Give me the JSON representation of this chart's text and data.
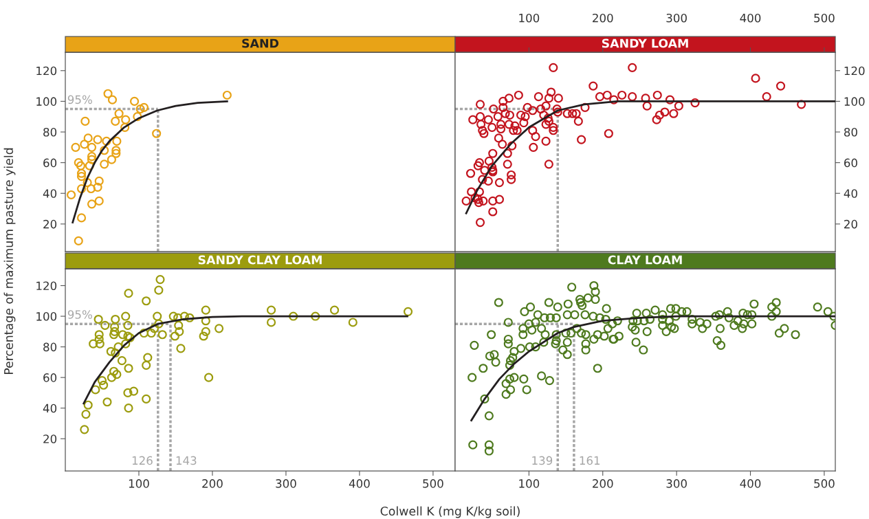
{
  "chart_data": [
    {
      "type": "scatter",
      "title": "SAND",
      "ylabel": "Percentage of maximum pasture yield",
      "marker": "circle",
      "xlim": [
        0,
        530
      ],
      "ylim": [
        2,
        132
      ],
      "yticks": [
        20,
        40,
        60,
        80,
        100,
        120
      ],
      "tick_labels": "y",
      "series": [
        {
          "color": "#e8a317",
          "x": [
            58,
            64,
            94,
            102,
            107,
            98,
            73,
            68,
            82,
            81,
            27,
            124,
            220,
            31,
            44,
            26,
            36,
            14,
            56,
            70,
            53,
            69,
            69,
            36,
            36,
            63,
            53,
            18,
            21,
            33,
            22,
            22,
            30,
            46,
            22,
            35,
            44,
            8,
            36,
            46,
            22,
            18
          ],
          "values": [
            105,
            101,
            100,
            95,
            96,
            90,
            92,
            87,
            88,
            83,
            87,
            79,
            104,
            76,
            75,
            72,
            70,
            70,
            74,
            74,
            68,
            68,
            66,
            64,
            62,
            62,
            59,
            60,
            58,
            58,
            53,
            51,
            47,
            48,
            43,
            43,
            44,
            39,
            33,
            35,
            24,
            9
          ]
        },
        {
          "type": "line",
          "color": "#231f20",
          "marker": "none",
          "x": [
            10,
            20,
            30,
            40,
            50,
            60,
            80,
            100,
            125,
            150,
            180,
            220
          ],
          "values": [
            21,
            37,
            50,
            60,
            68,
            74,
            83,
            89,
            94,
            97,
            99,
            100
          ]
        }
      ],
      "ref_lines": [
        {
          "axis": "y",
          "value": 95,
          "label": "95%",
          "color": "#a6a6a6",
          "line_style": "dotted"
        },
        {
          "axis": "x",
          "value": 126,
          "label": null,
          "color": "#a6a6a6",
          "line_style": "dotted"
        }
      ]
    },
    {
      "type": "scatter",
      "title": "SANDY LOAM",
      "marker": "circle",
      "xlim": [
        0,
        515
      ],
      "xticks": [
        100,
        200,
        300,
        400,
        500
      ],
      "ylim": [
        2,
        132
      ],
      "yticks": [
        20,
        40,
        60,
        80,
        100,
        120
      ],
      "series": [
        {
          "color": "#c3141e",
          "x": [
            133,
            187,
            196,
            206,
            215,
            130,
            127,
            140,
            113,
            86,
            73,
            65,
            34,
            65,
            52,
            98,
            116,
            123,
            138,
            139,
            152,
            159,
            164,
            176,
            167,
            171,
            208,
            24,
            34,
            45,
            58,
            68,
            74,
            89,
            95,
            105,
            120,
            126,
            127,
            123,
            133,
            133,
            35,
            37,
            39,
            50,
            62,
            62,
            73,
            81,
            79,
            84,
            93,
            105,
            109,
            106,
            123,
            127,
            59,
            64,
            77,
            51,
            71,
            71,
            46,
            31,
            33,
            21,
            40,
            50,
            51,
            51,
            37,
            45,
            60,
            76,
            76,
            22,
            33,
            15,
            27,
            31,
            32,
            38,
            51,
            60,
            51,
            34,
            240,
            226,
            240,
            258,
            260,
            274,
            291,
            303,
            296,
            284,
            277,
            273,
            325,
            407,
            422,
            441,
            469
          ],
          "values": [
            122,
            110,
            103,
            104,
            101,
            106,
            102,
            102,
            103,
            104,
            102,
            100,
            98,
            96,
            95,
            96,
            95,
            97,
            95,
            93,
            92,
            92,
            92,
            96,
            87,
            75,
            79,
            88,
            90,
            88,
            90,
            92,
            91,
            91,
            90,
            94,
            91,
            89,
            87,
            85,
            83,
            81,
            85,
            81,
            79,
            83,
            85,
            82,
            85,
            84,
            81,
            81,
            86,
            81,
            77,
            70,
            74,
            59,
            76,
            72,
            71,
            66,
            66,
            59,
            61,
            58,
            60,
            53,
            55,
            57,
            55,
            54,
            49,
            48,
            47,
            52,
            49,
            41,
            41,
            35,
            37,
            36,
            34,
            35,
            35,
            36,
            28,
            21,
            122,
            104,
            103,
            102,
            97,
            104,
            101,
            97,
            92,
            93,
            91,
            88,
            99,
            115,
            103,
            110,
            98
          ]
        },
        {
          "type": "line",
          "color": "#231f20",
          "marker": "none",
          "x": [
            15,
            30,
            50,
            75,
            100,
            139,
            175,
            220,
            300,
            515
          ],
          "values": [
            27,
            42,
            58,
            72,
            83,
            94,
            98,
            100,
            100,
            100
          ]
        }
      ],
      "ref_lines": [
        {
          "axis": "y",
          "value": 95,
          "label": null,
          "color": "#a6a6a6",
          "line_style": "dotted"
        },
        {
          "axis": "x",
          "value": 139,
          "label": null,
          "color": "#a6a6a6",
          "line_style": "dotted"
        }
      ]
    },
    {
      "type": "scatter",
      "title": "SANDY CLAY LOAM",
      "xlabel": "Colwell K (mg K/kg soil)",
      "marker": "circle",
      "xlim": [
        0,
        530
      ],
      "xticks": [
        100,
        200,
        300,
        400,
        500
      ],
      "ylim": [
        -1,
        131
      ],
      "yticks": [
        20,
        40,
        60,
        80,
        100,
        120
      ],
      "series": [
        {
          "color": "#9c9c0e",
          "x": [
            129,
            127,
            86,
            110,
            45,
            68,
            82,
            125,
            147,
            153,
            162,
            169,
            191,
            191,
            280,
            280,
            310,
            340,
            366,
            391,
            466,
            54,
            67,
            67,
            66,
            85,
            127,
            121,
            107,
            117,
            132,
            154,
            155,
            149,
            191,
            188,
            209,
            46,
            46,
            38,
            47,
            78,
            85,
            88,
            82,
            72,
            62,
            68,
            77,
            86,
            112,
            110,
            157,
            195,
            66,
            70,
            63,
            50,
            52,
            41,
            85,
            93,
            110,
            57,
            86,
            31,
            28,
            26
          ],
          "values": [
            124,
            117,
            115,
            110,
            98,
            98,
            100,
            100,
            100,
            99,
            100,
            99,
            104,
            97,
            104,
            96,
            100,
            100,
            104,
            96,
            103,
            94,
            93,
            90,
            88,
            94,
            95,
            92,
            89,
            89,
            88,
            94,
            90,
            87,
            90,
            87,
            92,
            88,
            85,
            82,
            82,
            88,
            87,
            86,
            82,
            80,
            77,
            76,
            71,
            66,
            73,
            68,
            79,
            60,
            64,
            62,
            60,
            58,
            55,
            52,
            50,
            51,
            46,
            44,
            40,
            42,
            36,
            26
          ]
        },
        {
          "type": "line",
          "color": "#231f20",
          "marker": "none",
          "x": [
            25,
            40,
            60,
            80,
            100,
            126,
            160,
            200,
            240,
            465
          ],
          "values": [
            43,
            57,
            70,
            81,
            89,
            95,
            98,
            99.5,
            100,
            100
          ]
        }
      ],
      "ref_lines": [
        {
          "axis": "y",
          "value": 95,
          "label": "95%",
          "color": "#a6a6a6",
          "line_style": "dotted"
        },
        {
          "axis": "x",
          "value": 126,
          "label": "126",
          "color": "#a6a6a6",
          "line_style": "dotted"
        },
        {
          "axis": "x",
          "value": 143,
          "label": "143",
          "color": "#a6a6a6",
          "line_style": "dotted"
        }
      ]
    },
    {
      "type": "scatter",
      "title": "CLAY LOAM",
      "marker": "circle",
      "xlim": [
        0,
        515
      ],
      "xticks": [
        100,
        200,
        300,
        400,
        500
      ],
      "ylim": [
        -1,
        131
      ],
      "tick_labels": "x",
      "series": [
        {
          "color": "#4e7a1e",
          "x": [
            158,
            188,
            190,
            190,
            180,
            169,
            170,
            172,
            59,
            127,
            153,
            139,
            102,
            94,
            205,
            112,
            121,
            129,
            137,
            152,
            162,
            176,
            187,
            196,
            204,
            72,
            100,
            109,
            92,
            92,
            104,
            117,
            122,
            120,
            137,
            137,
            136,
            150,
            157,
            152,
            165,
            171,
            177,
            177,
            177,
            188,
            193,
            202,
            207,
            214,
            213,
            49,
            26,
            72,
            72,
            80,
            78,
            89,
            101,
            109,
            146,
            152,
            47,
            53,
            55,
            75,
            74,
            38,
            193,
            23,
            69,
            74,
            80,
            93,
            75,
            69,
            97,
            117,
            128,
            40,
            46,
            24,
            46,
            46,
            215,
            222,
            220,
            246,
            259,
            271,
            292,
            299,
            307,
            314,
            241,
            247,
            256,
            264,
            281,
            281,
            299,
            290,
            240,
            244,
            260,
            281,
            286,
            293,
            297,
            245,
            255,
            321,
            321,
            332,
            335,
            341,
            353,
            358,
            369,
            371,
            359,
            355,
            360,
            378,
            383,
            389,
            391,
            390,
            396,
            402,
            402,
            405,
            429,
            435,
            435,
            429,
            439,
            446,
            461,
            491,
            505,
            513,
            515
          ],
          "values": [
            119,
            120,
            116,
            111,
            112,
            111,
            109,
            107,
            109,
            109,
            108,
            106,
            106,
            103,
            105,
            101,
            99,
            99,
            99,
            101,
            101,
            101,
            100,
            99,
            98,
            96,
            95,
            96,
            92,
            88,
            91,
            92,
            88,
            83,
            88,
            84,
            82,
            89,
            89,
            83,
            92,
            89,
            88,
            82,
            78,
            85,
            88,
            87,
            92,
            85,
            95,
            88,
            81,
            85,
            82,
            77,
            73,
            79,
            80,
            80,
            78,
            75,
            74,
            75,
            70,
            71,
            68,
            66,
            66,
            60,
            56,
            59,
            60,
            59,
            52,
            49,
            52,
            61,
            58,
            46,
            35,
            16,
            16,
            12,
            85,
            87,
            97,
            102,
            102,
            104,
            105,
            105,
            103,
            103,
            97,
            97,
            97,
            98,
            101,
            98,
            100,
            97,
            93,
            91,
            90,
            94,
            90,
            93,
            92,
            83,
            78,
            98,
            95,
            96,
            92,
            95,
            100,
            101,
            103,
            99,
            92,
            84,
            81,
            94,
            97,
            92,
            95,
            102,
            101,
            101,
            95,
            108,
            106,
            109,
            103,
            100,
            89,
            92,
            88,
            106,
            103,
            100,
            94
          ]
        },
        {
          "type": "line",
          "color": "#231f20",
          "marker": "none",
          "x": [
            22,
            40,
            60,
            80,
            100,
            139,
            161,
            200,
            250,
            300,
            515
          ],
          "values": [
            32,
            46,
            59,
            69,
            77,
            89,
            93,
            97,
            99,
            100,
            100
          ]
        }
      ],
      "ref_lines": [
        {
          "axis": "y",
          "value": 95,
          "label": null,
          "color": "#a6a6a6",
          "line_style": "dotted"
        },
        {
          "axis": "x",
          "value": 139,
          "label": "139",
          "color": "#a6a6a6",
          "line_style": "dotted"
        },
        {
          "axis": "x",
          "value": 161,
          "label": "161",
          "color": "#a6a6a6",
          "line_style": "dotted"
        }
      ]
    }
  ]
}
